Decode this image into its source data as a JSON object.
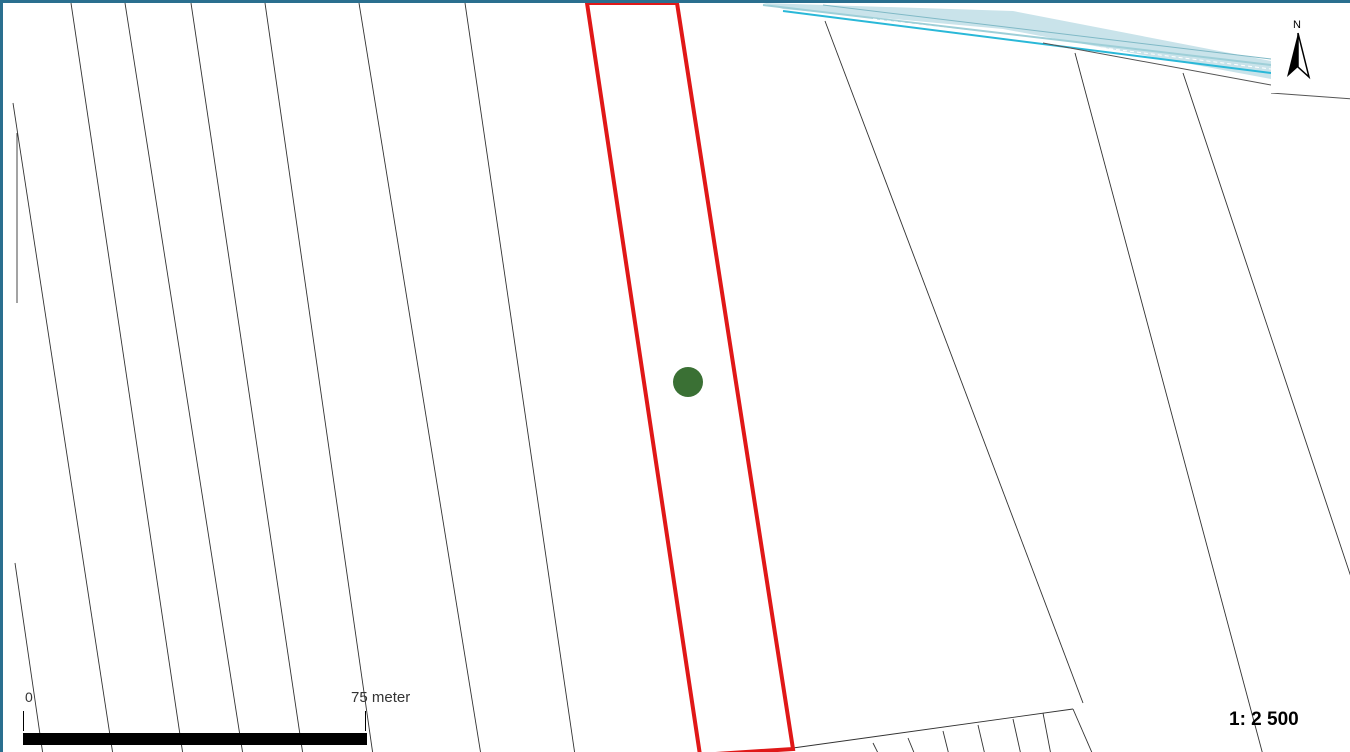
{
  "map": {
    "colors": {
      "frame": "#2a6f8f",
      "parcel_lines": "#333333",
      "highlight_parcel": "#e01818",
      "point_marker": "#3a7034",
      "water_channel": "#2ab8d8",
      "water_hatch": "#9ecfd8"
    },
    "north_arrow": {
      "letter": "N",
      "icon": "north-arrow-icon"
    },
    "scale_bar": {
      "start_label": "0",
      "end_label": "75 meter"
    },
    "scale_ratio": "1: 2 500"
  }
}
